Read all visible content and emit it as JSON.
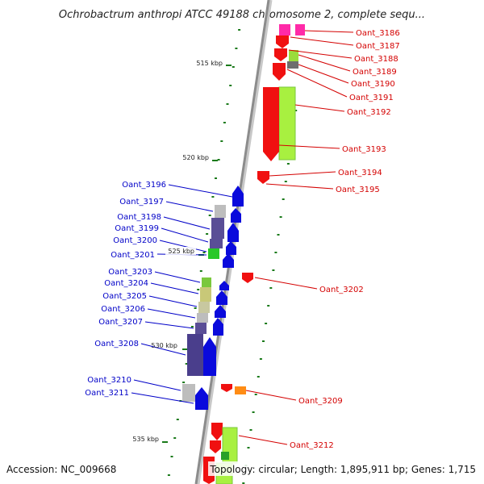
{
  "title": "Ochrobactrum anthropi ATCC 49188 chromosome 2, complete sequ...",
  "footer": {
    "accession": "Accession: NC_009668",
    "summary": "Topology: circular; Length: 1,895,911 bp; Genes: 1,715"
  },
  "colors": {
    "backbone": "#8c8c8c",
    "tick": "#1a7a1a",
    "forward_label": "#0000c8",
    "reverse_label": "#d40000",
    "forward_gene": "#0a0adc",
    "reverse_gene": "#f01010"
  },
  "scale_ticks": [
    "515 kbp",
    "520 kbp",
    "525 kbp",
    "530 kbp",
    "535 kbp"
  ],
  "genes_reverse": [
    {
      "label": "Oant_3186",
      "color": "#ff2aa8"
    },
    {
      "label": "Oant_3187",
      "color": "#f01010"
    },
    {
      "label": "Oant_3188",
      "color": "#f01010"
    },
    {
      "label": "Oant_3189",
      "color": "#9adc3c"
    },
    {
      "label": "Oant_3190",
      "color": "#6e6e6e"
    },
    {
      "label": "Oant_3191",
      "color": "#f01010"
    },
    {
      "label": "Oant_3192",
      "color": "#a8f040"
    },
    {
      "label": "Oant_3193",
      "color": "#f01010"
    },
    {
      "label": "Oant_3194",
      "color": "#f01010"
    },
    {
      "label": "Oant_3195",
      "color": "#f01010"
    },
    {
      "label": "Oant_3202",
      "color": "#f01010"
    },
    {
      "label": "Oant_3209",
      "color": "#ff8c14"
    },
    {
      "label": "Oant_3212",
      "color": "#f01010"
    }
  ],
  "genes_forward": [
    {
      "label": "Oant_3196",
      "color": "#0a0adc"
    },
    {
      "label": "Oant_3197",
      "color": "#bdbdbd"
    },
    {
      "label": "Oant_3198",
      "color": "#5a4e96"
    },
    {
      "label": "Oant_3199",
      "color": "#5a4e96"
    },
    {
      "label": "Oant_3200",
      "color": "#5a4e96"
    },
    {
      "label": "Oant_3201",
      "color": "#28c828"
    },
    {
      "label": "Oant_3203",
      "color": "#7ac83c"
    },
    {
      "label": "Oant_3204",
      "color": "#c8c878"
    },
    {
      "label": "Oant_3205",
      "color": "#c8c8a0"
    },
    {
      "label": "Oant_3206",
      "color": "#bdbdbd"
    },
    {
      "label": "Oant_3207",
      "color": "#5a4e96"
    },
    {
      "label": "Oant_3208",
      "color": "#4a3e8c"
    },
    {
      "label": "Oant_3210",
      "color": "#bdbdbd"
    },
    {
      "label": "Oant_3211",
      "color": "#0a0adc"
    }
  ]
}
